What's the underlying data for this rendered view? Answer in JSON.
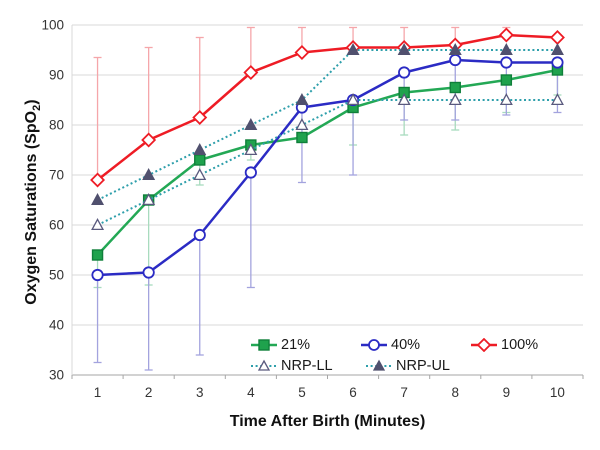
{
  "chart_data": {
    "type": "line",
    "title": "",
    "xlabel": "Time After Birth (Minutes)",
    "ylabel": "Oxygen Saturations (SpO2)",
    "ylabel_parts": {
      "main": "Oxygen Saturations (SpO",
      "sub": "2",
      "close": ")"
    },
    "x": [
      1,
      2,
      3,
      4,
      5,
      6,
      7,
      8,
      9,
      10
    ],
    "ylim": [
      30,
      100
    ],
    "yticks": [
      30,
      40,
      50,
      60,
      70,
      80,
      90,
      100
    ],
    "grid": "horizontal-only",
    "legend_position": "inside-bottom-right",
    "series": [
      {
        "name": "21%",
        "line_color": "#23A855",
        "marker": "square-filled",
        "marker_fill": "#1FA24D",
        "marker_stroke": "#0F7F3A",
        "line_style": "solid",
        "values": [
          54,
          65,
          73,
          76,
          77.5,
          83.5,
          86.5,
          87.5,
          89,
          91
        ],
        "error_low": [
          47.5,
          48,
          68,
          73,
          null,
          76,
          78,
          79,
          82.5,
          86
        ],
        "error_color": "#A8DBBE"
      },
      {
        "name": "40%",
        "line_color": "#2B2BC4",
        "marker": "circle-open",
        "marker_fill": "#FFFFFF",
        "marker_stroke": "#2B2BC4",
        "line_style": "solid",
        "values": [
          50,
          50.5,
          58,
          70.5,
          83.5,
          85,
          90.5,
          93,
          92.5,
          92.5
        ],
        "error_low": [
          32.5,
          31,
          34,
          47.5,
          68.5,
          70,
          81,
          81,
          82,
          82.5
        ],
        "error_color": "#A3A3DE"
      },
      {
        "name": "100%",
        "line_color": "#EE1C25",
        "marker": "diamond-open",
        "marker_fill": "#FFFFFF",
        "marker_stroke": "#EE1C25",
        "line_style": "solid",
        "values": [
          69,
          77,
          81.5,
          90.5,
          94.5,
          95.5,
          95.5,
          96,
          98,
          97.5
        ],
        "error_high": [
          93.5,
          95.5,
          97.5,
          99.5,
          99.5,
          99.5,
          99.5,
          99.5,
          99.5,
          null
        ],
        "error_color": "#F5A6AA"
      },
      {
        "name": "NRP-LL",
        "line_color": "#2E9FAB",
        "marker": "triangle-open",
        "marker_fill": "#FFFFFF",
        "marker_stroke": "#5A5A7E",
        "line_style": "dotted",
        "values": [
          60,
          65,
          70,
          75,
          80,
          85,
          85,
          85,
          85,
          85
        ]
      },
      {
        "name": "NRP-UL",
        "line_color": "#2E9FAB",
        "marker": "triangle-filled",
        "marker_fill": "#50506E",
        "marker_stroke": "#50506E",
        "line_style": "dotted",
        "values": [
          65,
          70,
          75,
          80,
          85,
          95,
          95,
          95,
          95,
          95
        ]
      }
    ],
    "style": {
      "background": "#FFFFFF",
      "gridline_color": "#D9D9D9",
      "axis_line_color": "#A6A6A6",
      "tick_label_color": "#333333",
      "tick_label_size": 13.5
    },
    "legend": {
      "rows": [
        [
          "21%",
          "40%",
          "100%"
        ],
        [
          "NRP-LL",
          "NRP-UL"
        ]
      ]
    }
  }
}
